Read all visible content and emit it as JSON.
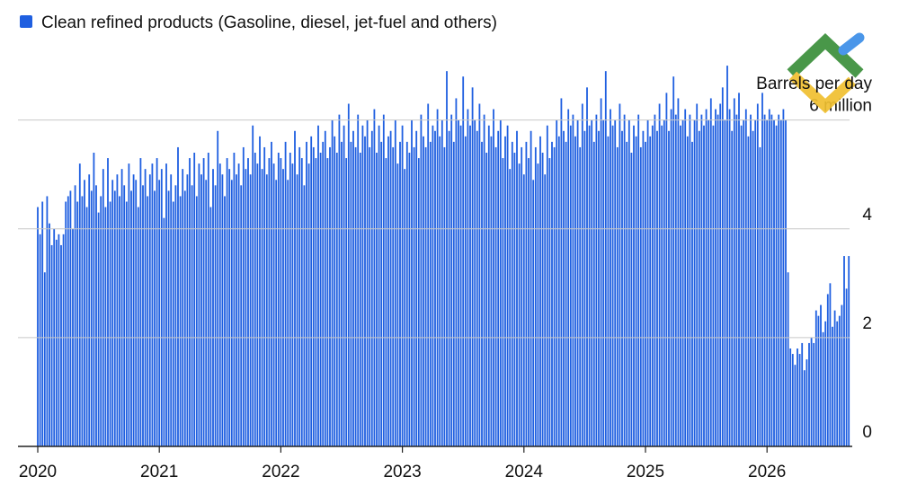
{
  "chart_data": {
    "type": "bar",
    "y_label": "Barrels per day",
    "categories": [
      "2020",
      null,
      null,
      null,
      null,
      null,
      null,
      null,
      null,
      null,
      null,
      null,
      null,
      null,
      null,
      null,
      null,
      null,
      null,
      null,
      null,
      null,
      null,
      null,
      null,
      null,
      null,
      null,
      null,
      null,
      null,
      null,
      null,
      null,
      null,
      null,
      null,
      null,
      null,
      null,
      null,
      null,
      null,
      null,
      null,
      null,
      null,
      null,
      null,
      null,
      null,
      null,
      "2021",
      null,
      null,
      null,
      null,
      null,
      null,
      null,
      null,
      null,
      null,
      null,
      null,
      null,
      null,
      null,
      null,
      null,
      null,
      null,
      null,
      null,
      null,
      null,
      null,
      null,
      null,
      null,
      null,
      null,
      null,
      null,
      null,
      null,
      null,
      null,
      null,
      null,
      null,
      null,
      null,
      null,
      null,
      null,
      null,
      null,
      null,
      null,
      null,
      null,
      null,
      null,
      "2022",
      null,
      null,
      null,
      null,
      null,
      null,
      null,
      null,
      null,
      null,
      null,
      null,
      null,
      null,
      null,
      null,
      null,
      null,
      null,
      null,
      null,
      null,
      null,
      null,
      null,
      null,
      null,
      null,
      null,
      null,
      null,
      null,
      null,
      null,
      null,
      null,
      null,
      null,
      null,
      null,
      null,
      null,
      null,
      null,
      null,
      null,
      null,
      null,
      null,
      null,
      null,
      "2023",
      null,
      null,
      null,
      null,
      null,
      null,
      null,
      null,
      null,
      null,
      null,
      null,
      null,
      null,
      null,
      null,
      null,
      null,
      null,
      null,
      null,
      null,
      null,
      null,
      null,
      null,
      null,
      null,
      null,
      null,
      null,
      null,
      null,
      null,
      null,
      null,
      null,
      null,
      null,
      null,
      null,
      null,
      null,
      null,
      null,
      null,
      null,
      null,
      null,
      null,
      null,
      "2024",
      null,
      null,
      null,
      null,
      null,
      null,
      null,
      null,
      null,
      null,
      null,
      null,
      null,
      null,
      null,
      null,
      null,
      null,
      null,
      null,
      null,
      null,
      null,
      null,
      null,
      null,
      null,
      null,
      null,
      null,
      null,
      null,
      null,
      null,
      null,
      null,
      null,
      null,
      null,
      null,
      null,
      null,
      null,
      null,
      null,
      null,
      null,
      null,
      null,
      null,
      null,
      "2025",
      null,
      null,
      null,
      null,
      null,
      null,
      null,
      null,
      null,
      null,
      null,
      null,
      null,
      null,
      null,
      null,
      null,
      null,
      null,
      null,
      null,
      null,
      null,
      null,
      null,
      null,
      null,
      null,
      null,
      null,
      null,
      null,
      null,
      null,
      null,
      null,
      null,
      null,
      null,
      null,
      null,
      null,
      null,
      null,
      null,
      null,
      null,
      null,
      null,
      null,
      null,
      "2026",
      null,
      null,
      null,
      null,
      null,
      null,
      null,
      null,
      null,
      null,
      null,
      null,
      null,
      null,
      null,
      null,
      null,
      null,
      null,
      null,
      null,
      null,
      null,
      null,
      null,
      null,
      null,
      null,
      null,
      null,
      null,
      null,
      null,
      null,
      null
    ],
    "series": [
      {
        "name": "Clean refined products (Gasoline, diesel, jet-fuel and others)",
        "color": "#1f5fe0",
        "values": [
          4.4,
          3.9,
          4.5,
          3.2,
          4.6,
          4.1,
          3.7,
          4.0,
          3.8,
          3.9,
          3.7,
          3.9,
          4.5,
          4.6,
          4.7,
          4.0,
          4.8,
          4.5,
          5.2,
          4.6,
          4.9,
          4.4,
          5.0,
          4.7,
          5.4,
          4.8,
          4.3,
          4.6,
          5.1,
          4.4,
          5.3,
          4.5,
          4.9,
          4.7,
          5.0,
          4.6,
          5.1,
          4.8,
          4.5,
          5.2,
          4.7,
          5.0,
          4.9,
          4.4,
          5.3,
          4.8,
          5.1,
          4.6,
          5.0,
          5.2,
          4.7,
          5.3,
          4.9,
          5.1,
          4.2,
          5.2,
          4.7,
          5.0,
          4.5,
          4.8,
          5.5,
          4.6,
          5.1,
          4.7,
          5.0,
          5.3,
          4.8,
          5.4,
          4.6,
          5.2,
          5.0,
          5.3,
          4.9,
          5.4,
          4.4,
          5.1,
          4.8,
          5.8,
          5.2,
          5.0,
          4.6,
          5.3,
          5.1,
          4.9,
          5.4,
          5.0,
          5.2,
          4.8,
          5.5,
          5.1,
          5.3,
          5.0,
          5.9,
          5.4,
          5.2,
          5.7,
          5.1,
          5.5,
          5.0,
          5.3,
          5.6,
          5.2,
          4.9,
          5.4,
          5.3,
          5.1,
          5.6,
          4.9,
          5.4,
          5.2,
          5.8,
          5.0,
          5.5,
          5.3,
          4.8,
          5.6,
          5.2,
          5.7,
          5.5,
          5.3,
          5.9,
          5.4,
          5.6,
          5.8,
          5.3,
          5.5,
          6.0,
          5.7,
          5.4,
          6.1,
          5.6,
          5.9,
          5.3,
          6.3,
          5.6,
          5.8,
          5.5,
          6.1,
          5.4,
          5.9,
          5.7,
          6.0,
          5.5,
          5.8,
          6.2,
          5.4,
          5.9,
          5.6,
          6.1,
          5.3,
          5.7,
          5.8,
          5.5,
          6.0,
          5.2,
          5.6,
          5.9,
          5.1,
          5.6,
          5.4,
          6.0,
          5.5,
          5.8,
          5.3,
          6.1,
          5.7,
          5.5,
          6.3,
          5.6,
          5.9,
          5.8,
          6.2,
          5.7,
          6.0,
          5.5,
          6.9,
          5.8,
          6.1,
          5.6,
          6.4,
          6.0,
          5.9,
          6.8,
          5.7,
          6.2,
          5.9,
          6.6,
          6.0,
          5.8,
          6.3,
          5.6,
          6.1,
          5.4,
          5.9,
          5.7,
          6.2,
          5.5,
          5.8,
          6.0,
          5.3,
          5.7,
          5.9,
          5.1,
          5.6,
          5.4,
          5.8,
          5.2,
          5.5,
          5.0,
          5.6,
          5.3,
          5.8,
          4.9,
          5.5,
          5.2,
          5.7,
          5.4,
          5.0,
          5.9,
          5.3,
          5.6,
          5.5,
          6.0,
          5.7,
          6.4,
          5.8,
          5.6,
          6.2,
          5.9,
          6.1,
          5.7,
          6.0,
          5.5,
          6.3,
          5.8,
          6.6,
          5.9,
          6.0,
          5.6,
          6.1,
          5.8,
          6.4,
          6.0,
          6.9,
          5.7,
          6.2,
          5.9,
          6.0,
          5.5,
          6.3,
          5.8,
          6.1,
          5.6,
          6.0,
          5.4,
          5.9,
          5.7,
          6.1,
          5.5,
          5.8,
          5.6,
          6.0,
          5.7,
          5.9,
          6.1,
          5.8,
          6.3,
          5.9,
          6.0,
          6.5,
          5.8,
          6.2,
          6.8,
          6.1,
          6.4,
          5.9,
          6.0,
          6.2,
          5.7,
          6.1,
          5.6,
          6.0,
          6.3,
          5.8,
          6.1,
          5.9,
          6.2,
          6.0,
          6.4,
          5.9,
          6.2,
          6.1,
          6.3,
          6.6,
          6.0,
          7.0,
          6.2,
          5.8,
          6.4,
          6.1,
          6.5,
          5.9,
          6.0,
          6.2,
          5.7,
          6.1,
          5.8,
          6.0,
          6.3,
          5.5,
          6.5,
          6.1,
          6.0,
          6.2,
          6.1,
          6.0,
          5.9,
          6.1,
          6.0,
          6.2,
          6.0,
          3.2,
          1.8,
          1.7,
          1.5,
          1.8,
          1.7,
          1.9,
          1.4,
          1.6,
          1.9,
          2.0,
          1.9,
          2.5,
          2.4,
          2.6,
          2.1,
          2.3,
          2.8,
          3.0,
          2.2,
          2.5,
          2.3,
          2.4,
          2.6,
          3.5,
          2.9,
          3.5
        ]
      }
    ],
    "ylim": [
      0,
      7.2
    ],
    "yticks": [
      0,
      2,
      4,
      {
        "value": 6,
        "label": "6 million"
      }
    ],
    "grid": true
  }
}
